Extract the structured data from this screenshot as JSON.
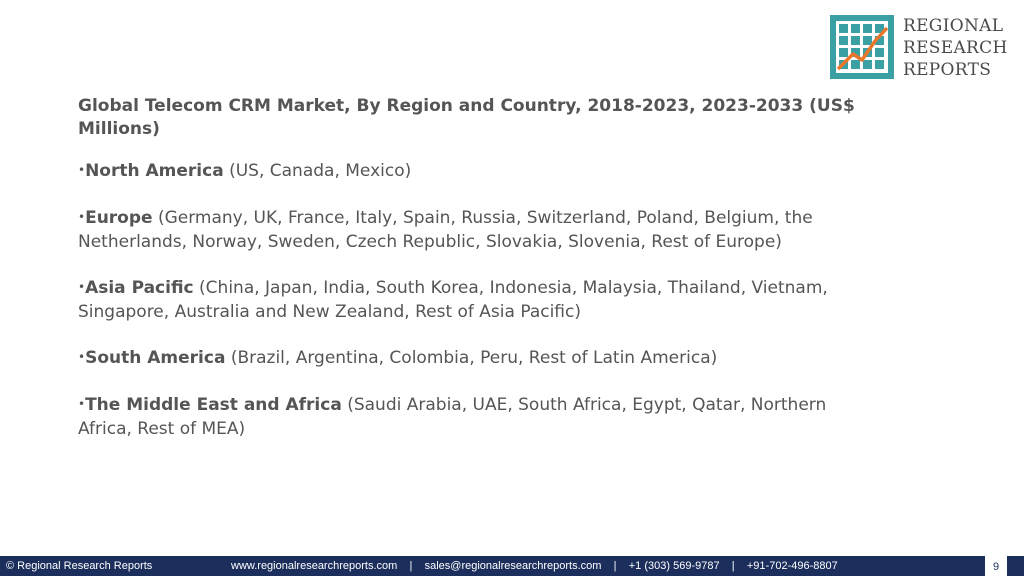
{
  "logo": {
    "lines": [
      "REGIONAL",
      "RESEARCH",
      "REPORTS"
    ],
    "colors": {
      "teal": "#3aa0a3",
      "orange": "#e8772b"
    }
  },
  "title": "Global Telecom CRM Market, By Region and Country, 2018-2023, 2023-2033 (US$ Millions)",
  "bullet_glyph": "•",
  "regions": [
    {
      "name": "North America",
      "countries": " (US, Canada, Mexico)"
    },
    {
      "name": "Europe",
      "countries": " (Germany, UK, France, Italy, Spain, Russia, Switzerland, Poland, Belgium, the Netherlands, Norway, Sweden, Czech Republic, Slovakia, Slovenia, Rest of Europe)"
    },
    {
      "name": "Asia Pacific",
      "countries": " (China, Japan, India, South Korea, Indonesia, Malaysia, Thailand, Vietnam, Singapore, Australia and New Zealand, Rest of Asia Pacific)"
    },
    {
      "name": "South America",
      "countries": " (Brazil, Argentina, Colombia, Peru, Rest of Latin America)"
    },
    {
      "name": "The Middle East and Africa",
      "countries": " (Saudi Arabia, UAE, South Africa, Egypt, Qatar, Northern Africa, Rest of MEA)"
    }
  ],
  "footer": {
    "copyright": "© Regional Research Reports",
    "contacts": "www.regionalresearchreports.com    |    sales@regionalresearchreports.com    |    +1 (303) 569-9787    |    +91-702-496-8807",
    "page_number": "9",
    "bg_color": "#1c2f5c"
  }
}
